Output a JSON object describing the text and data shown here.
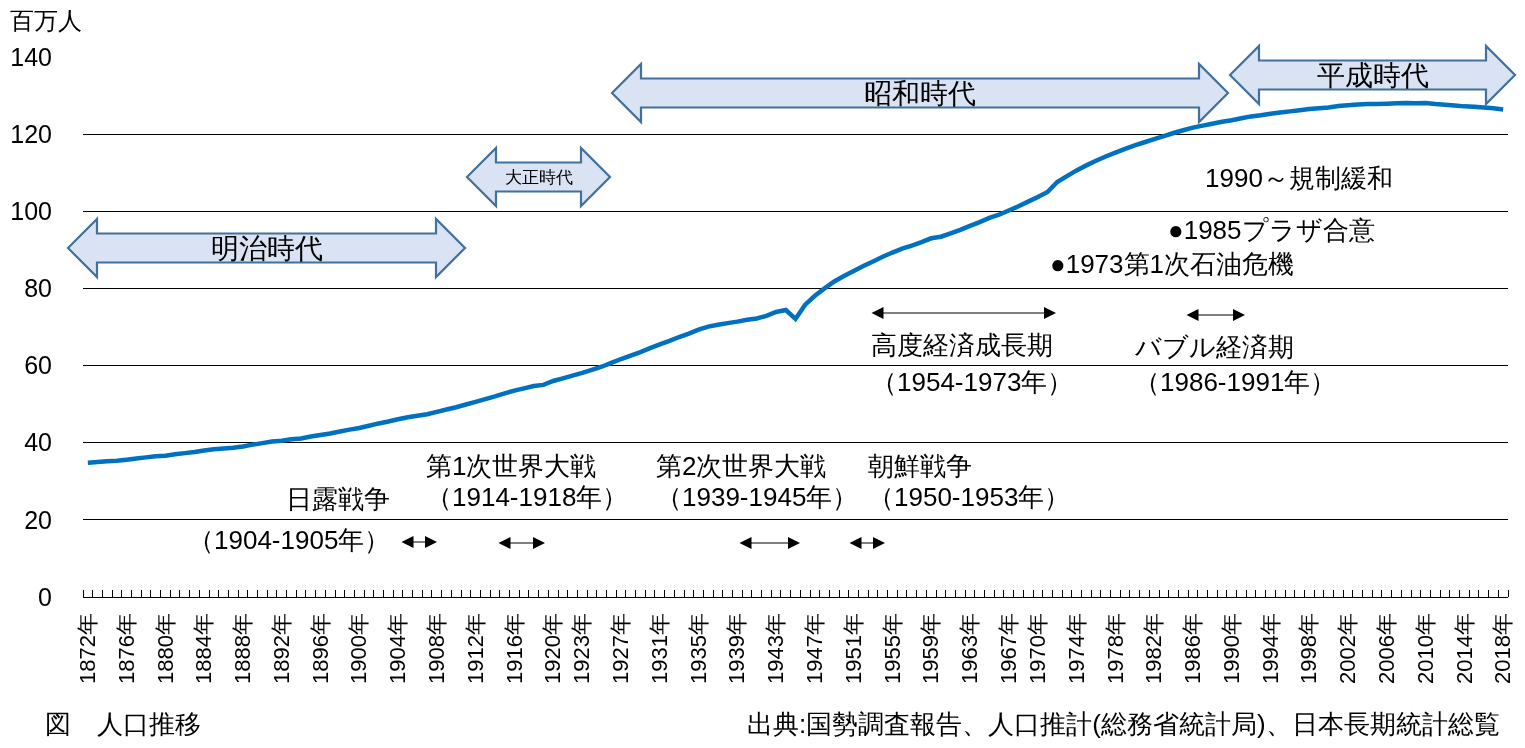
{
  "chart_data": {
    "type": "line",
    "title": "図　人口推移",
    "ylabel": "百万人",
    "x": [
      1872,
      1873,
      1874,
      1875,
      1876,
      1877,
      1878,
      1879,
      1880,
      1881,
      1882,
      1883,
      1884,
      1885,
      1886,
      1887,
      1888,
      1889,
      1890,
      1891,
      1892,
      1893,
      1894,
      1895,
      1896,
      1897,
      1898,
      1899,
      1900,
      1901,
      1902,
      1903,
      1904,
      1905,
      1906,
      1907,
      1908,
      1909,
      1910,
      1911,
      1912,
      1913,
      1914,
      1915,
      1916,
      1917,
      1918,
      1919,
      1920,
      1921,
      1922,
      1923,
      1924,
      1925,
      1926,
      1927,
      1928,
      1929,
      1930,
      1931,
      1932,
      1933,
      1934,
      1935,
      1936,
      1937,
      1938,
      1939,
      1940,
      1941,
      1942,
      1943,
      1944,
      1945,
      1946,
      1947,
      1948,
      1949,
      1950,
      1951,
      1952,
      1953,
      1954,
      1955,
      1956,
      1957,
      1958,
      1959,
      1960,
      1961,
      1962,
      1963,
      1964,
      1965,
      1966,
      1967,
      1968,
      1969,
      1970,
      1971,
      1972,
      1973,
      1974,
      1975,
      1976,
      1977,
      1978,
      1979,
      1980,
      1981,
      1982,
      1983,
      1984,
      1985,
      1986,
      1987,
      1988,
      1989,
      1990,
      1991,
      1992,
      1993,
      1994,
      1995,
      1996,
      1997,
      1998,
      1999,
      2000,
      2001,
      2002,
      2003,
      2004,
      2005,
      2006,
      2007,
      2008,
      2009,
      2010,
      2011,
      2012,
      2013,
      2014,
      2015,
      2016,
      2017,
      2018
    ],
    "series": [
      {
        "color": "#0070c0",
        "values": [
          34.8,
          35.0,
          35.2,
          35.3,
          35.6,
          35.9,
          36.2,
          36.5,
          36.6,
          37.0,
          37.3,
          37.6,
          38.0,
          38.3,
          38.5,
          38.7,
          39.0,
          39.5,
          39.9,
          40.3,
          40.5,
          40.9,
          41.1,
          41.6,
          42.0,
          42.4,
          42.9,
          43.4,
          43.8,
          44.4,
          45.0,
          45.5,
          46.1,
          46.6,
          47.0,
          47.4,
          48.0,
          48.6,
          49.2,
          49.9,
          50.6,
          51.3,
          52.0,
          52.8,
          53.5,
          54.1,
          54.7,
          55.0,
          56.0,
          56.7,
          57.4,
          58.1,
          58.9,
          59.7,
          60.7,
          61.7,
          62.6,
          63.5,
          64.5,
          65.5,
          66.4,
          67.4,
          68.3,
          69.3,
          70.1,
          70.6,
          71.0,
          71.4,
          71.9,
          72.2,
          72.9,
          73.9,
          74.4,
          72.1,
          75.8,
          78.1,
          80.0,
          81.8,
          83.2,
          84.5,
          85.8,
          87.0,
          88.2,
          89.3,
          90.3,
          91.1,
          92.0,
          93.0,
          93.4,
          94.3,
          95.2,
          96.2,
          97.2,
          98.3,
          99.1,
          100.2,
          101.3,
          102.5,
          103.7,
          105.0,
          107.6,
          109.1,
          110.6,
          111.9,
          113.1,
          114.2,
          115.2,
          116.2,
          117.1,
          117.9,
          118.7,
          119.5,
          120.3,
          121.0,
          121.7,
          122.2,
          122.7,
          123.2,
          123.6,
          124.1,
          124.6,
          124.9,
          125.3,
          125.6,
          125.9,
          126.2,
          126.5,
          126.7,
          126.9,
          127.3,
          127.5,
          127.7,
          127.8,
          127.8,
          127.9,
          128.0,
          128.1,
          128.0,
          128.1,
          127.8,
          127.6,
          127.4,
          127.2,
          127.1,
          126.9,
          126.7,
          126.4
        ]
      }
    ],
    "xlim": [
      1871.5,
      2018.5
    ],
    "xticks": [
      {
        "value": 1872,
        "label": "1872年"
      },
      {
        "value": 1876,
        "label": "1876年"
      },
      {
        "value": 1880,
        "label": "1880年"
      },
      {
        "value": 1884,
        "label": "1884年"
      },
      {
        "value": 1888,
        "label": "1888年"
      },
      {
        "value": 1892,
        "label": "1892年"
      },
      {
        "value": 1896,
        "label": "1896年"
      },
      {
        "value": 1900,
        "label": "1900年"
      },
      {
        "value": 1904,
        "label": "1904年"
      },
      {
        "value": 1908,
        "label": "1908年"
      },
      {
        "value": 1912,
        "label": "1912年"
      },
      {
        "value": 1916,
        "label": "1916年"
      },
      {
        "value": 1920,
        "label": "1920年"
      },
      {
        "value": 1923,
        "label": "1923年"
      },
      {
        "value": 1927,
        "label": "1927年"
      },
      {
        "value": 1931,
        "label": "1931年"
      },
      {
        "value": 1935,
        "label": "1935年"
      },
      {
        "value": 1939,
        "label": "1939年"
      },
      {
        "value": 1943,
        "label": "1943年"
      },
      {
        "value": 1947,
        "label": "1947年"
      },
      {
        "value": 1951,
        "label": "1951年"
      },
      {
        "value": 1955,
        "label": "1955年"
      },
      {
        "value": 1959,
        "label": "1959年"
      },
      {
        "value": 1963,
        "label": "1963年"
      },
      {
        "value": 1967,
        "label": "1967年"
      },
      {
        "value": 1970,
        "label": "1970年"
      },
      {
        "value": 1974,
        "label": "1974年"
      },
      {
        "value": 1978,
        "label": "1978年"
      },
      {
        "value": 1982,
        "label": "1982年"
      },
      {
        "value": 1986,
        "label": "1986年"
      },
      {
        "value": 1990,
        "label": "1990年"
      },
      {
        "value": 1994,
        "label": "1994年"
      },
      {
        "value": 1998,
        "label": "1998年"
      },
      {
        "value": 2002,
        "label": "2002年"
      },
      {
        "value": 2006,
        "label": "2006年"
      },
      {
        "value": 2010,
        "label": "2010年"
      },
      {
        "value": 2014,
        "label": "2014年"
      },
      {
        "value": 2018,
        "label": "2018年"
      },
      {
        "value": 1871.5,
        "label": null
      },
      {
        "value": 1872.5,
        "label": null
      },
      {
        "value": 1873.5,
        "label": null
      },
      {
        "value": 1874.5,
        "label": null
      },
      {
        "value": 1875.5,
        "label": null
      },
      {
        "value": 1876.5,
        "label": null
      },
      {
        "value": 1877.5,
        "label": null
      },
      {
        "value": 1878.5,
        "label": null
      },
      {
        "value": 1879.5,
        "label": null
      },
      {
        "value": 1880.5,
        "label": null
      },
      {
        "value": 1881.5,
        "label": null
      },
      {
        "value": 1882.5,
        "label": null
      },
      {
        "value": 1883.5,
        "label": null
      },
      {
        "value": 1884.5,
        "label": null
      },
      {
        "value": 1885.5,
        "label": null
      },
      {
        "value": 1886.5,
        "label": null
      },
      {
        "value": 1887.5,
        "label": null
      },
      {
        "value": 1888.5,
        "label": null
      },
      {
        "value": 1889.5,
        "label": null
      },
      {
        "value": 1890.5,
        "label": null
      },
      {
        "value": 1891.5,
        "label": null
      },
      {
        "value": 1892.5,
        "label": null
      },
      {
        "value": 1893.5,
        "label": null
      },
      {
        "value": 1894.5,
        "label": null
      },
      {
        "value": 1895.5,
        "label": null
      },
      {
        "value": 1896.5,
        "label": null
      },
      {
        "value": 1897.5,
        "label": null
      },
      {
        "value": 1898.5,
        "label": null
      },
      {
        "value": 1899.5,
        "label": null
      },
      {
        "value": 1900.5,
        "label": null
      },
      {
        "value": 1901.5,
        "label": null
      },
      {
        "value": 1902.5,
        "label": null
      },
      {
        "value": 1903.5,
        "label": null
      },
      {
        "value": 1904.5,
        "label": null
      },
      {
        "value": 1905.5,
        "label": null
      },
      {
        "value": 1906.5,
        "label": null
      },
      {
        "value": 1907.5,
        "label": null
      },
      {
        "value": 1908.5,
        "label": null
      },
      {
        "value": 1909.5,
        "label": null
      },
      {
        "value": 1910.5,
        "label": null
      },
      {
        "value": 1911.5,
        "label": null
      },
      {
        "value": 1912.5,
        "label": null
      },
      {
        "value": 1913.5,
        "label": null
      },
      {
        "value": 1914.5,
        "label": null
      },
      {
        "value": 1915.5,
        "label": null
      },
      {
        "value": 1916.5,
        "label": null
      },
      {
        "value": 1917.5,
        "label": null
      },
      {
        "value": 1918.5,
        "label": null
      },
      {
        "value": 1919.5,
        "label": null
      },
      {
        "value": 1920.5,
        "label": null
      },
      {
        "value": 1921.5,
        "label": null
      },
      {
        "value": 1922.5,
        "label": null
      },
      {
        "value": 1923.5,
        "label": null
      },
      {
        "value": 1924.5,
        "label": null
      },
      {
        "value": 1925.5,
        "label": null
      },
      {
        "value": 1926.5,
        "label": null
      },
      {
        "value": 1927.5,
        "label": null
      },
      {
        "value": 1928.5,
        "label": null
      },
      {
        "value": 1929.5,
        "label": null
      },
      {
        "value": 1930.5,
        "label": null
      },
      {
        "value": 1931.5,
        "label": null
      },
      {
        "value": 1932.5,
        "label": null
      },
      {
        "value": 1933.5,
        "label": null
      },
      {
        "value": 1934.5,
        "label": null
      },
      {
        "value": 1935.5,
        "label": null
      },
      {
        "value": 1936.5,
        "label": null
      },
      {
        "value": 1937.5,
        "label": null
      },
      {
        "value": 1938.5,
        "label": null
      },
      {
        "value": 1939.5,
        "label": null
      },
      {
        "value": 1940.5,
        "label": null
      },
      {
        "value": 1941.5,
        "label": null
      },
      {
        "value": 1942.5,
        "label": null
      },
      {
        "value": 1943.5,
        "label": null
      },
      {
        "value": 1944.5,
        "label": null
      },
      {
        "value": 1945.5,
        "label": null
      },
      {
        "value": 1946.5,
        "label": null
      },
      {
        "value": 1947.5,
        "label": null
      },
      {
        "value": 1948.5,
        "label": null
      },
      {
        "value": 1949.5,
        "label": null
      },
      {
        "value": 1950.5,
        "label": null
      },
      {
        "value": 1951.5,
        "label": null
      },
      {
        "value": 1952.5,
        "label": null
      },
      {
        "value": 1953.5,
        "label": null
      },
      {
        "value": 1954.5,
        "label": null
      },
      {
        "value": 1955.5,
        "label": null
      },
      {
        "value": 1956.5,
        "label": null
      },
      {
        "value": 1957.5,
        "label": null
      },
      {
        "value": 1958.5,
        "label": null
      },
      {
        "value": 1959.5,
        "label": null
      },
      {
        "value": 1960.5,
        "label": null
      },
      {
        "value": 1961.5,
        "label": null
      },
      {
        "value": 1962.5,
        "label": null
      },
      {
        "value": 1963.5,
        "label": null
      },
      {
        "value": 1964.5,
        "label": null
      },
      {
        "value": 1965.5,
        "label": null
      },
      {
        "value": 1966.5,
        "label": null
      },
      {
        "value": 1967.5,
        "label": null
      },
      {
        "value": 1968.5,
        "label": null
      },
      {
        "value": 1969.5,
        "label": null
      },
      {
        "value": 1970.5,
        "label": null
      },
      {
        "value": 1971.5,
        "label": null
      },
      {
        "value": 1972.5,
        "label": null
      },
      {
        "value": 1973.5,
        "label": null
      },
      {
        "value": 1974.5,
        "label": null
      },
      {
        "value": 1975.5,
        "label": null
      },
      {
        "value": 1976.5,
        "label": null
      },
      {
        "value": 1977.5,
        "label": null
      },
      {
        "value": 1978.5,
        "label": null
      },
      {
        "value": 1979.5,
        "label": null
      },
      {
        "value": 1980.5,
        "label": null
      },
      {
        "value": 1981.5,
        "label": null
      },
      {
        "value": 1982.5,
        "label": null
      },
      {
        "value": 1983.5,
        "label": null
      },
      {
        "value": 1984.5,
        "label": null
      },
      {
        "value": 1985.5,
        "label": null
      },
      {
        "value": 1986.5,
        "label": null
      },
      {
        "value": 1987.5,
        "label": null
      },
      {
        "value": 1988.5,
        "label": null
      },
      {
        "value": 1989.5,
        "label": null
      },
      {
        "value": 1990.5,
        "label": null
      },
      {
        "value": 1991.5,
        "label": null
      },
      {
        "value": 1992.5,
        "label": null
      },
      {
        "value": 1993.5,
        "label": null
      },
      {
        "value": 1994.5,
        "label": null
      },
      {
        "value": 1995.5,
        "label": null
      },
      {
        "value": 1996.5,
        "label": null
      },
      {
        "value": 1997.5,
        "label": null
      },
      {
        "value": 1998.5,
        "label": null
      },
      {
        "value": 1999.5,
        "label": null
      },
      {
        "value": 2000.5,
        "label": null
      },
      {
        "value": 2001.5,
        "label": null
      },
      {
        "value": 2002.5,
        "label": null
      },
      {
        "value": 2003.5,
        "label": null
      },
      {
        "value": 2004.5,
        "label": null
      },
      {
        "value": 2005.5,
        "label": null
      },
      {
        "value": 2006.5,
        "label": null
      },
      {
        "value": 2007.5,
        "label": null
      },
      {
        "value": 2008.5,
        "label": null
      },
      {
        "value": 2009.5,
        "label": null
      },
      {
        "value": 2010.5,
        "label": null
      },
      {
        "value": 2011.5,
        "label": null
      },
      {
        "value": 2012.5,
        "label": null
      },
      {
        "value": 2013.5,
        "label": null
      },
      {
        "value": 2014.5,
        "label": null
      },
      {
        "value": 2015.5,
        "label": null
      },
      {
        "value": 2016.5,
        "label": null
      },
      {
        "value": 2017.5,
        "label": null
      },
      {
        "value": 2018.5,
        "label": null
      }
    ],
    "ylim": [
      0,
      140
    ],
    "yticks": [
      0,
      20,
      40,
      60,
      80,
      100,
      120,
      140
    ],
    "grid": "y",
    "annotations": [
      "明治時代",
      "大正時代",
      "昭和時代",
      "平成時代",
      "日露戦争",
      "（1904-1905年）",
      "第1次世界大戦",
      "（1914-1918年）",
      "第2次世界大戦",
      "（1939-1945年）",
      "朝鮮戦争",
      "（1950-1953年）",
      "高度経済成長期",
      "（1954-1973年）",
      "バブル経済期",
      "（1986-1991年）",
      "●1973第1次石油危機",
      "●1985プラザ合意",
      "1990～規制緩和",
      "出典:国勢調査報告、人口推計(総務省統計局)、日本長期統計総覧"
    ]
  }
}
